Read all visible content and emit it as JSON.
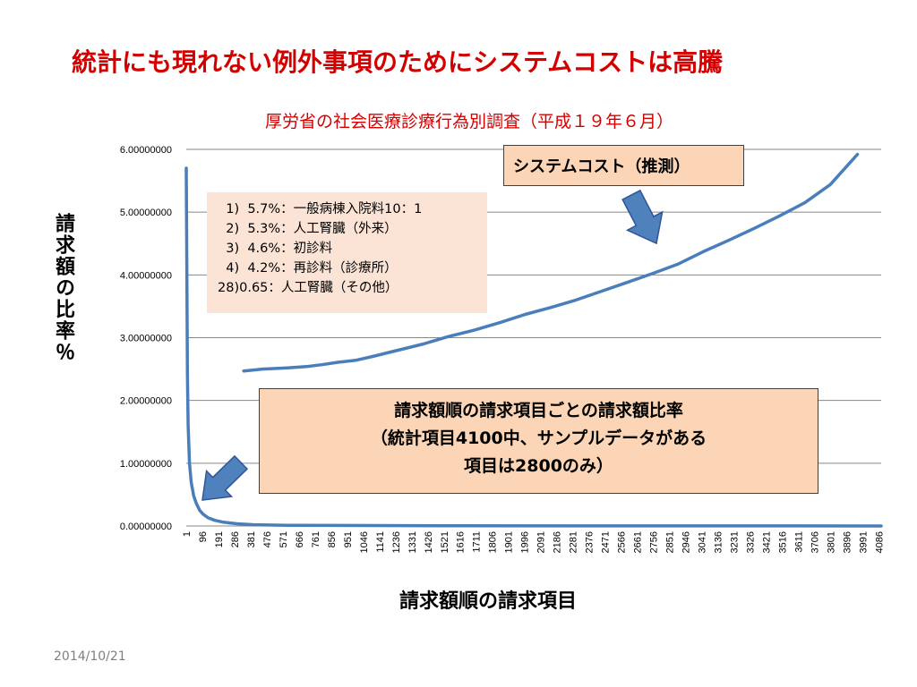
{
  "slide": {
    "title": "統計にも現れない例外事項のためにシステムコストは高騰",
    "date": "2014/10/21"
  },
  "annotations": {
    "rank_lines": [
      "  1)  5.7%：一般病棟入院料10：1",
      "  2)  5.3%：人工腎臓（外来）",
      "  3)  4.6%：初診料",
      "  4)  4.2%：再診料（診療所）",
      "28)0.65：人工腎臓（その他）"
    ],
    "system_cost_label": "システムコスト（推測）",
    "ratio_lines": [
      "請求額順の請求項目ごとの請求額比率",
      "（統計項目4100中、サンプルデータがある",
      "項目は2800のみ）"
    ]
  },
  "colors": {
    "title": "#d40000",
    "series_line": "#4a7ebb",
    "arrow_fill": "#4f81bd",
    "arrow_stroke": "#2f5597",
    "gridline": "#878787",
    "rank_box_bg": "#fbe4d5",
    "callout_bg": "#fbd5b5"
  },
  "chart_data": {
    "type": "line",
    "title": "厚労省の社会医療診療行為別調査（平成１９年６月）",
    "xlabel": "請求額順の請求項目",
    "ylabel": "請求額の比率％",
    "ylim": [
      0,
      6
    ],
    "xlim": [
      1,
      4100
    ],
    "grid": true,
    "legend": "none",
    "y_ticks": [
      "0.00000000",
      "1.00000000",
      "2.00000000",
      "3.00000000",
      "4.00000000",
      "5.00000000",
      "6.00000000"
    ],
    "x_ticks": [
      "1",
      "96",
      "191",
      "286",
      "381",
      "476",
      "571",
      "666",
      "761",
      "856",
      "951",
      "1046",
      "1141",
      "1236",
      "1331",
      "1426",
      "1521",
      "1616",
      "1711",
      "1806",
      "1901",
      "1996",
      "2091",
      "2186",
      "2281",
      "2376",
      "2471",
      "2566",
      "2661",
      "2756",
      "2851",
      "2946",
      "3041",
      "3136",
      "3231",
      "3326",
      "3421",
      "3516",
      "3611",
      "3706",
      "3801",
      "3896",
      "3991",
      "4086"
    ],
    "series": [
      {
        "x": [
          1,
          4,
          8,
          12,
          20,
          30,
          45,
          60,
          80,
          100,
          130,
          170,
          220,
          300,
          400,
          600,
          900,
          1500,
          2500,
          3500,
          4100
        ],
        "y": [
          5.7,
          4.2,
          2.4,
          1.6,
          1.0,
          0.7,
          0.48,
          0.36,
          0.25,
          0.19,
          0.13,
          0.09,
          0.06,
          0.035,
          0.02,
          0.012,
          0.008,
          0.004,
          0.002,
          0.001,
          0.0
        ]
      },
      {
        "x": [
          340,
          450,
          600,
          711,
          800,
          900,
          1000,
          1100,
          1250,
          1400,
          1550,
          1700,
          1850,
          2000,
          2150,
          2300,
          2450,
          2600,
          2750,
          2900,
          3050,
          3200,
          3350,
          3500,
          3650,
          3800,
          3960
        ],
        "y": [
          2.47,
          2.5,
          2.52,
          2.54,
          2.57,
          2.61,
          2.64,
          2.7,
          2.8,
          2.9,
          3.02,
          3.12,
          3.24,
          3.37,
          3.48,
          3.6,
          3.74,
          3.88,
          4.02,
          4.17,
          4.37,
          4.55,
          4.74,
          4.94,
          5.15,
          5.44,
          5.92
        ]
      }
    ]
  }
}
